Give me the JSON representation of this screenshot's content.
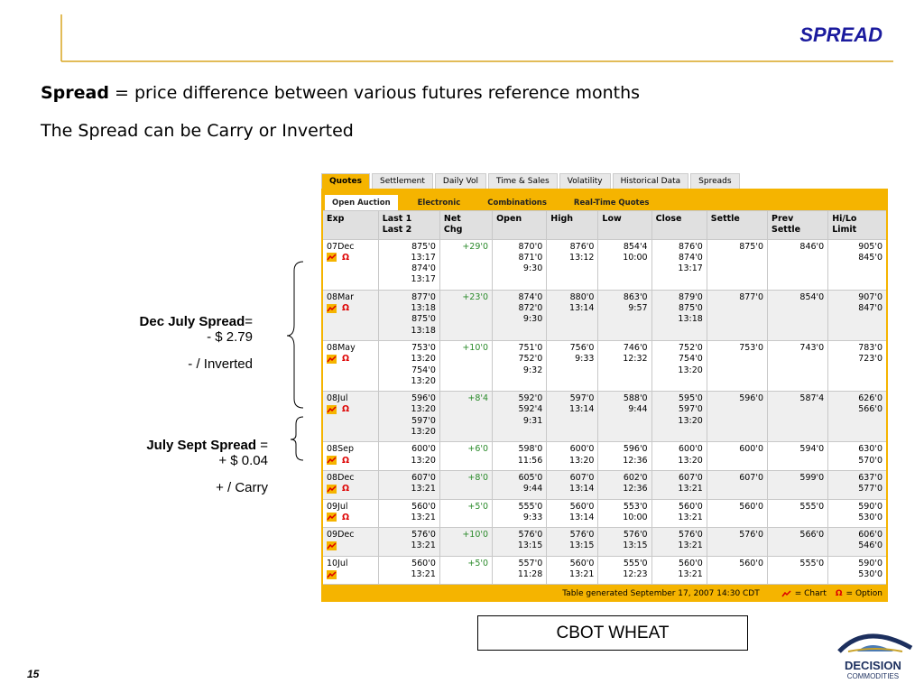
{
  "header": {
    "title": "SPREAD"
  },
  "intro": {
    "term": "Spread",
    "definition": "= price difference between various futures reference months",
    "note": "The Spread can be Carry or Inverted"
  },
  "table": {
    "tabs": [
      "Quotes",
      "Settlement",
      "Daily Vol",
      "Time & Sales",
      "Volatility",
      "Historical Data",
      "Spreads"
    ],
    "subtabs": [
      "Open Auction",
      "Electronic",
      "Combinations",
      "Real-Time Quotes"
    ],
    "columns": [
      [
        "Exp"
      ],
      [
        "Last 1",
        "Last 2"
      ],
      [
        "Net",
        "Chg"
      ],
      [
        "Open"
      ],
      [
        "High"
      ],
      [
        "Low"
      ],
      [
        "Close"
      ],
      [
        "Settle"
      ],
      [
        "Prev",
        "Settle"
      ],
      [
        "Hi/Lo",
        "Limit"
      ]
    ],
    "rows": [
      {
        "exp": "07Dec",
        "option": "Ω",
        "cells": [
          [
            "875'0",
            "13:17",
            "874'0",
            "13:17"
          ],
          [
            "+29'0"
          ],
          [
            "870'0",
            "871'0",
            "9:30"
          ],
          [
            "876'0",
            "13:12"
          ],
          [
            "854'4",
            "10:00"
          ],
          [
            "876'0",
            "874'0",
            "13:17"
          ],
          [
            "875'0"
          ],
          [
            "846'0"
          ],
          [
            "905'0",
            "845'0"
          ]
        ]
      },
      {
        "exp": "08Mar",
        "option": "Ω",
        "cells": [
          [
            "877'0",
            "13:18",
            "875'0",
            "13:18"
          ],
          [
            "+23'0"
          ],
          [
            "874'0",
            "872'0",
            "9:30"
          ],
          [
            "880'0",
            "13:14"
          ],
          [
            "863'0",
            "9:57"
          ],
          [
            "879'0",
            "875'0",
            "13:18"
          ],
          [
            "877'0"
          ],
          [
            "854'0"
          ],
          [
            "907'0",
            "847'0"
          ]
        ]
      },
      {
        "exp": "08May",
        "option": "Ω",
        "cells": [
          [
            "753'0",
            "13:20",
            "754'0",
            "13:20"
          ],
          [
            "+10'0"
          ],
          [
            "751'0",
            "752'0",
            "9:32"
          ],
          [
            "756'0",
            "9:33"
          ],
          [
            "746'0",
            "12:32"
          ],
          [
            "752'0",
            "754'0",
            "13:20"
          ],
          [
            "753'0"
          ],
          [
            "743'0"
          ],
          [
            "783'0",
            "723'0"
          ]
        ]
      },
      {
        "exp": "08Jul",
        "option": "Ω",
        "cells": [
          [
            "596'0",
            "13:20",
            "597'0",
            "13:20"
          ],
          [
            "+8'4"
          ],
          [
            "592'0",
            "592'4",
            "9:31"
          ],
          [
            "597'0",
            "13:14"
          ],
          [
            "588'0",
            "9:44"
          ],
          [
            "595'0",
            "597'0",
            "13:20"
          ],
          [
            "596'0"
          ],
          [
            "587'4"
          ],
          [
            "626'0",
            "566'0"
          ]
        ]
      },
      {
        "exp": "08Sep",
        "option": "Ω",
        "cells": [
          [
            "600'0",
            "13:20"
          ],
          [
            "+6'0"
          ],
          [
            "598'0",
            "11:56"
          ],
          [
            "600'0",
            "13:20"
          ],
          [
            "596'0",
            "12:36"
          ],
          [
            "600'0",
            "13:20"
          ],
          [
            "600'0"
          ],
          [
            "594'0"
          ],
          [
            "630'0",
            "570'0"
          ]
        ]
      },
      {
        "exp": "08Dec",
        "option": "Ω",
        "cells": [
          [
            "607'0",
            "13:21"
          ],
          [
            "+8'0"
          ],
          [
            "605'0",
            "9:44"
          ],
          [
            "607'0",
            "13:14"
          ],
          [
            "602'0",
            "12:36"
          ],
          [
            "607'0",
            "13:21"
          ],
          [
            "607'0"
          ],
          [
            "599'0"
          ],
          [
            "637'0",
            "577'0"
          ]
        ]
      },
      {
        "exp": "09Jul",
        "option": "Ω",
        "cells": [
          [
            "560'0",
            "13:21"
          ],
          [
            "+5'0"
          ],
          [
            "555'0",
            "9:33"
          ],
          [
            "560'0",
            "13:14"
          ],
          [
            "553'0",
            "10:00"
          ],
          [
            "560'0",
            "13:21"
          ],
          [
            "560'0"
          ],
          [
            "555'0"
          ],
          [
            "590'0",
            "530'0"
          ]
        ]
      },
      {
        "exp": "09Dec",
        "cells": [
          [
            "576'0",
            "13:21"
          ],
          [
            "+10'0"
          ],
          [
            "576'0",
            "13:15"
          ],
          [
            "576'0",
            "13:15"
          ],
          [
            "576'0",
            "13:15"
          ],
          [
            "576'0",
            "13:21"
          ],
          [
            "576'0"
          ],
          [
            "566'0"
          ],
          [
            "606'0",
            "546'0"
          ]
        ]
      },
      {
        "exp": "10Jul",
        "cells": [
          [
            "560'0",
            "13:21"
          ],
          [
            "+5'0"
          ],
          [
            "557'0",
            "11:28"
          ],
          [
            "560'0",
            "13:21"
          ],
          [
            "555'0",
            "12:23"
          ],
          [
            "560'0",
            "13:21"
          ],
          [
            "560'0"
          ],
          [
            "555'0"
          ],
          [
            "590'0",
            "530'0"
          ]
        ]
      }
    ],
    "footer": {
      "generated": "Table generated September 17, 2007 14:30 CDT",
      "chart": "= Chart",
      "option_symbol": "Ω",
      "option": "= Option"
    }
  },
  "annotations": [
    {
      "label": "Dec July Spread",
      "equals": "=",
      "value": "- $ 2.79",
      "kind": "- / Inverted"
    },
    {
      "label": "July Sept Spread",
      "equals": "=",
      "value": "+ $ 0.04",
      "kind": "+ / Carry"
    }
  ],
  "caption": "CBOT WHEAT",
  "page_number": "15",
  "logo": {
    "line1": "DECISION",
    "line2": "COMMODITIES"
  }
}
